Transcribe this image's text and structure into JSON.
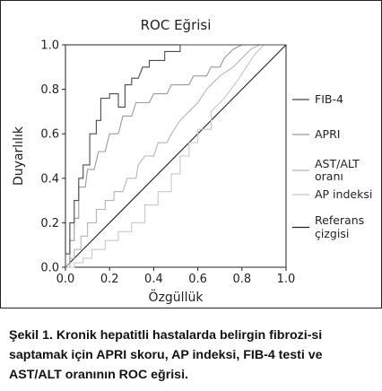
{
  "chart_data": {
    "type": "line",
    "title": "ROC Eğrisi",
    "xlabel": "Özgüllük",
    "ylabel": "Duyarlılık",
    "xlim": [
      0.0,
      1.0
    ],
    "ylim": [
      0.0,
      1.0
    ],
    "x_ticks": [
      "0.0",
      "0.2",
      "0.4",
      "0.6",
      "0.8",
      "1.0"
    ],
    "y_ticks": [
      "0.0",
      "0.2",
      "0.4",
      "0.6",
      "0.8",
      "1.0"
    ],
    "grid": false,
    "legend_position": "right",
    "series": [
      {
        "name": "FIB-4",
        "color": "#4a4a4a",
        "style": "step",
        "points": [
          [
            0.0,
            0.0
          ],
          [
            0.0,
            0.06
          ],
          [
            0.02,
            0.06
          ],
          [
            0.02,
            0.2
          ],
          [
            0.04,
            0.2
          ],
          [
            0.04,
            0.3
          ],
          [
            0.06,
            0.3
          ],
          [
            0.06,
            0.4
          ],
          [
            0.08,
            0.4
          ],
          [
            0.08,
            0.46
          ],
          [
            0.11,
            0.46
          ],
          [
            0.11,
            0.6
          ],
          [
            0.14,
            0.6
          ],
          [
            0.14,
            0.66
          ],
          [
            0.16,
            0.66
          ],
          [
            0.16,
            0.76
          ],
          [
            0.2,
            0.76
          ],
          [
            0.2,
            0.78
          ],
          [
            0.24,
            0.78
          ],
          [
            0.24,
            0.72
          ],
          [
            0.27,
            0.72
          ],
          [
            0.27,
            0.82
          ],
          [
            0.3,
            0.82
          ],
          [
            0.3,
            0.85
          ],
          [
            0.33,
            0.85
          ],
          [
            0.35,
            0.9
          ],
          [
            0.38,
            0.9
          ],
          [
            0.38,
            0.93
          ],
          [
            0.45,
            0.93
          ],
          [
            0.45,
            0.97
          ],
          [
            0.52,
            0.97
          ],
          [
            0.52,
            1.0
          ],
          [
            0.76,
            1.0
          ],
          [
            1.0,
            1.0
          ]
        ]
      },
      {
        "name": "APRI",
        "color": "#9a9a9a",
        "style": "step",
        "points": [
          [
            0.0,
            0.0
          ],
          [
            0.02,
            0.02
          ],
          [
            0.02,
            0.12
          ],
          [
            0.04,
            0.12
          ],
          [
            0.04,
            0.22
          ],
          [
            0.06,
            0.22
          ],
          [
            0.06,
            0.36
          ],
          [
            0.09,
            0.36
          ],
          [
            0.1,
            0.44
          ],
          [
            0.13,
            0.44
          ],
          [
            0.15,
            0.52
          ],
          [
            0.18,
            0.52
          ],
          [
            0.2,
            0.6
          ],
          [
            0.24,
            0.6
          ],
          [
            0.26,
            0.68
          ],
          [
            0.3,
            0.68
          ],
          [
            0.32,
            0.74
          ],
          [
            0.38,
            0.74
          ],
          [
            0.4,
            0.78
          ],
          [
            0.46,
            0.78
          ],
          [
            0.48,
            0.82
          ],
          [
            0.56,
            0.82
          ],
          [
            0.58,
            0.86
          ],
          [
            0.64,
            0.86
          ],
          [
            0.66,
            0.9
          ],
          [
            0.7,
            0.9
          ],
          [
            0.72,
            0.94
          ],
          [
            0.76,
            0.98
          ],
          [
            0.8,
            1.0
          ],
          [
            1.0,
            1.0
          ]
        ]
      },
      {
        "name": "AST/ALT oranı",
        "color": "#b5b5b5",
        "style": "step",
        "points": [
          [
            0.0,
            0.0
          ],
          [
            0.02,
            0.0
          ],
          [
            0.02,
            0.04
          ],
          [
            0.04,
            0.04
          ],
          [
            0.04,
            0.08
          ],
          [
            0.07,
            0.08
          ],
          [
            0.07,
            0.14
          ],
          [
            0.1,
            0.14
          ],
          [
            0.1,
            0.2
          ],
          [
            0.14,
            0.2
          ],
          [
            0.14,
            0.26
          ],
          [
            0.18,
            0.26
          ],
          [
            0.18,
            0.3
          ],
          [
            0.22,
            0.3
          ],
          [
            0.22,
            0.34
          ],
          [
            0.26,
            0.34
          ],
          [
            0.28,
            0.4
          ],
          [
            0.32,
            0.4
          ],
          [
            0.33,
            0.46
          ],
          [
            0.36,
            0.5
          ],
          [
            0.4,
            0.5
          ],
          [
            0.42,
            0.56
          ],
          [
            0.46,
            0.56
          ],
          [
            0.48,
            0.6
          ],
          [
            0.52,
            0.66
          ],
          [
            0.56,
            0.7
          ],
          [
            0.6,
            0.74
          ],
          [
            0.64,
            0.8
          ],
          [
            0.7,
            0.86
          ],
          [
            0.76,
            0.9
          ],
          [
            0.8,
            0.94
          ],
          [
            0.84,
            0.98
          ],
          [
            0.88,
            1.0
          ],
          [
            1.0,
            1.0
          ]
        ]
      },
      {
        "name": "AP indeksi",
        "color": "#c8c8c8",
        "style": "step",
        "points": [
          [
            0.0,
            0.0
          ],
          [
            0.04,
            0.0
          ],
          [
            0.04,
            0.02
          ],
          [
            0.08,
            0.02
          ],
          [
            0.08,
            0.04
          ],
          [
            0.12,
            0.04
          ],
          [
            0.12,
            0.08
          ],
          [
            0.18,
            0.08
          ],
          [
            0.18,
            0.12
          ],
          [
            0.24,
            0.12
          ],
          [
            0.24,
            0.16
          ],
          [
            0.3,
            0.16
          ],
          [
            0.3,
            0.2
          ],
          [
            0.36,
            0.2
          ],
          [
            0.36,
            0.28
          ],
          [
            0.42,
            0.28
          ],
          [
            0.42,
            0.34
          ],
          [
            0.48,
            0.34
          ],
          [
            0.48,
            0.42
          ],
          [
            0.52,
            0.42
          ],
          [
            0.52,
            0.5
          ],
          [
            0.56,
            0.5
          ],
          [
            0.56,
            0.56
          ],
          [
            0.6,
            0.56
          ],
          [
            0.6,
            0.62
          ],
          [
            0.66,
            0.62
          ],
          [
            0.66,
            0.7
          ],
          [
            0.72,
            0.76
          ],
          [
            0.78,
            0.84
          ],
          [
            0.82,
            0.9
          ],
          [
            0.86,
            0.96
          ],
          [
            0.9,
            1.0
          ],
          [
            1.0,
            1.0
          ]
        ]
      },
      {
        "name": "Referans çizgisi",
        "color": "#222222",
        "style": "line",
        "points": [
          [
            0.0,
            0.0
          ],
          [
            1.0,
            1.0
          ]
        ]
      }
    ],
    "legend_entries": [
      {
        "lines": [
          "FIB-4"
        ],
        "color": "#4a4a4a"
      },
      {
        "lines": [
          "APRI"
        ],
        "color": "#9a9a9a"
      },
      {
        "lines": [
          "AST/ALT",
          "oranı"
        ],
        "color": "#b5b5b5"
      },
      {
        "lines": [
          "AP indeksi"
        ],
        "color": "#c8c8c8"
      },
      {
        "lines": [
          "Referans",
          "çizgisi"
        ],
        "color": "#222222"
      }
    ]
  },
  "caption": "Şekil 1. Kronik hepatitli hastalarda belirgin fibrozi-si saptamak için APRI skoru, AP indeksi, FIB-4 testi ve AST/ALT oranının ROC eğrisi."
}
